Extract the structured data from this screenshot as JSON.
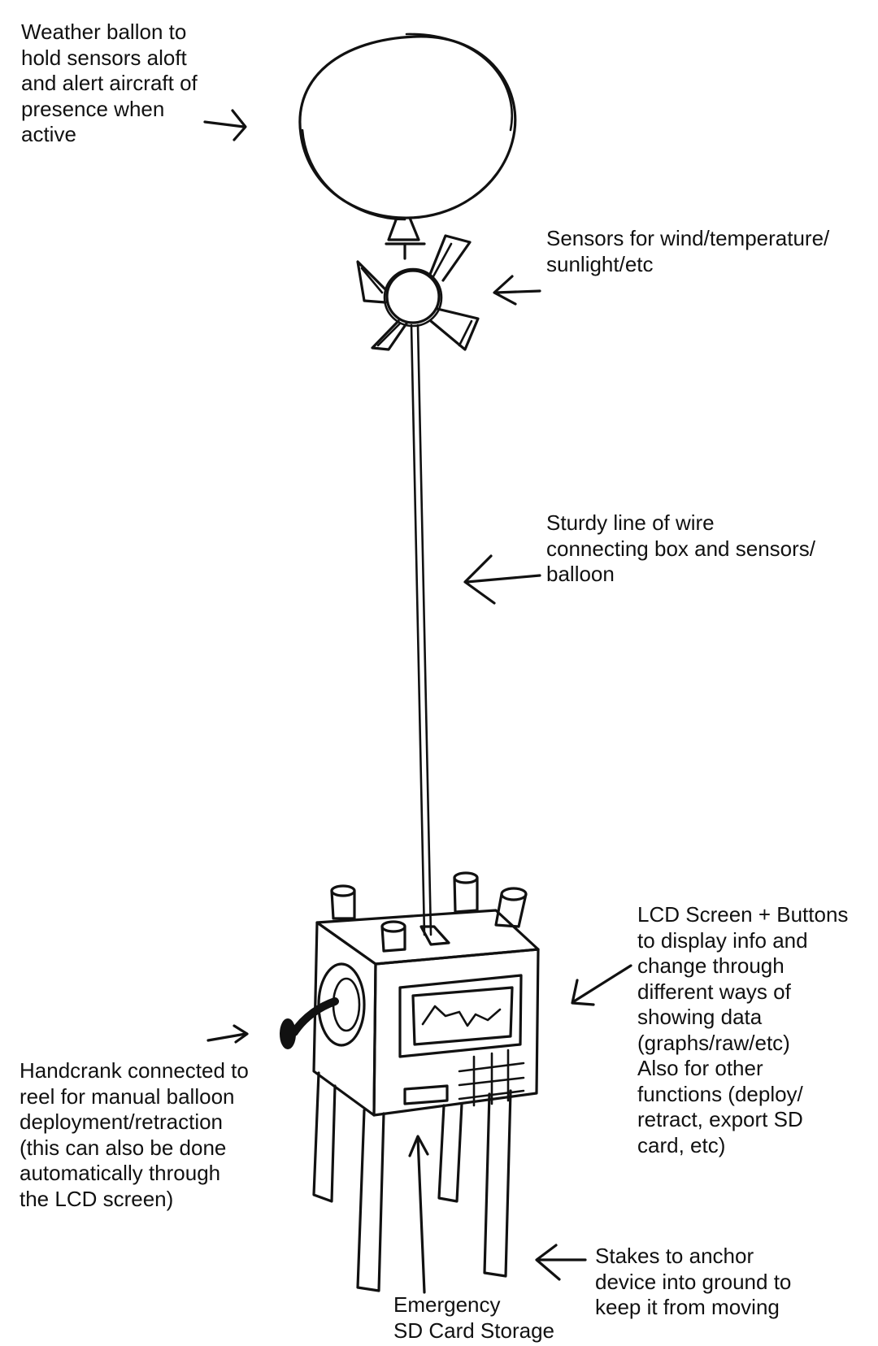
{
  "labels": {
    "balloon": [
      "Weather ballon to",
      "hold sensors aloft",
      "and alert aircraft of",
      "presence when",
      "active"
    ],
    "sensors": [
      "Sensors for wind/temperature/",
      "sunlight/etc"
    ],
    "wire": [
      "Sturdy line of wire",
      "connecting box and sensors/",
      "balloon"
    ],
    "lcd": [
      "LCD Screen + Buttons",
      "to display info and",
      "change through",
      "different ways of",
      "showing data",
      "(graphs/raw/etc)",
      "Also for other",
      "functions (deploy/",
      "retract, export SD",
      "card, etc)"
    ],
    "handcrank": [
      "Handcrank connected to",
      "reel for manual balloon",
      "deployment/retraction",
      "(this can also be done",
      "automatically through",
      "the LCD screen)"
    ],
    "stakes": [
      "Stakes to anchor",
      "device into ground to",
      "keep it from moving"
    ],
    "sd": [
      "Emergency",
      "SD Card Storage"
    ]
  }
}
